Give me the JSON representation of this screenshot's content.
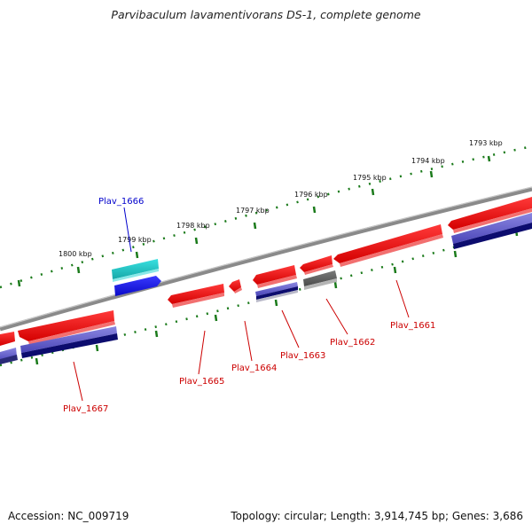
{
  "title": "Parvibaculum lavamentivorans DS-1, complete genome",
  "footer": {
    "accession": "Accession: NC_009719",
    "summary": "Topology: circular; Length: 3,914,745 bp; Genes: 3,686"
  },
  "colors": {
    "backbone": "#8a8a8a",
    "tick": "#1a7a1a",
    "gene_forward": "#ee1111",
    "gene_reverse_light": "#5a55c8",
    "gene_reverse_dark": "#0c0c6e",
    "gene_highlight": "#22c8c8",
    "gene_highlight_dark": "#1010dd",
    "gene_grey": "#666666",
    "label_red": "#cc0000",
    "label_blue": "#0000cc"
  },
  "scale_labels": [
    "1793 kbp",
    "1794 kbp",
    "1795 kbp",
    "1796 kbp",
    "1797 kbp",
    "1798 kbp",
    "1799 kbp",
    "1800 kbp"
  ],
  "gene_labels": [
    "Plav_1666",
    "Plav_1667",
    "Plav_1665",
    "Plav_1664",
    "Plav_1663",
    "Plav_1662",
    "Plav_1661"
  ]
}
